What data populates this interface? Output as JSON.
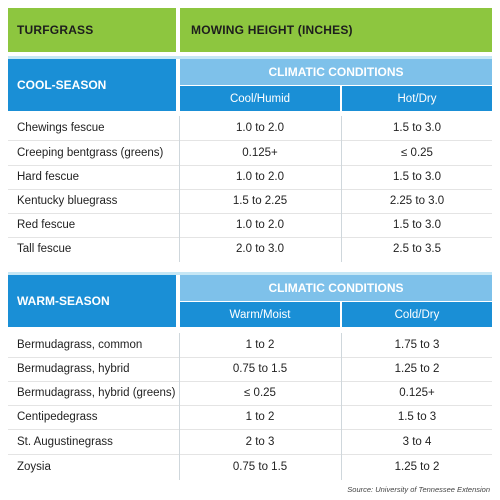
{
  "header": {
    "col1": "TURFGRASS",
    "col2": "MOWING HEIGHT (INCHES)"
  },
  "cool": {
    "label": "COOL-SEASON",
    "climatic": "CLIMATIC CONDITIONS",
    "cond1": "Cool/Humid",
    "cond2": "Hot/Dry",
    "rows": [
      {
        "name": "Chewings fescue",
        "v1": "1.0 to 2.0",
        "v2": "1.5 to 3.0"
      },
      {
        "name": "Creeping bentgrass (greens)",
        "v1": "0.125+",
        "v2": "≤ 0.25"
      },
      {
        "name": "Hard fescue",
        "v1": "1.0 to 2.0",
        "v2": "1.5 to 3.0"
      },
      {
        "name": "Kentucky bluegrass",
        "v1": "1.5 to 2.25",
        "v2": "2.25 to 3.0"
      },
      {
        "name": "Red fescue",
        "v1": "1.0 to 2.0",
        "v2": "1.5 to 3.0"
      },
      {
        "name": "Tall fescue",
        "v1": "2.0 to 3.0",
        "v2": "2.5 to 3.5"
      }
    ]
  },
  "warm": {
    "label": "WARM-SEASON",
    "climatic": "CLIMATIC CONDITIONS",
    "cond1": "Warm/Moist",
    "cond2": "Cold/Dry",
    "rows": [
      {
        "name": "Bermudagrass, common",
        "v1": "1 to 2",
        "v2": "1.75 to 3"
      },
      {
        "name": "Bermudagrass, hybrid",
        "v1": "0.75 to 1.5",
        "v2": "1.25 to 2"
      },
      {
        "name": "Bermudagrass, hybrid (greens)",
        "v1": "≤ 0.25",
        "v2": "0.125+"
      },
      {
        "name": "Centipedegrass",
        "v1": "1 to 2",
        "v2": "1.5 to 3"
      },
      {
        "name": "St. Augustinegrass",
        "v1": "2 to 3",
        "v2": "3 to 4"
      },
      {
        "name": "Zoysia",
        "v1": "0.75 to 1.5",
        "v2": "1.25 to 2"
      }
    ]
  },
  "source": "Source: University of Tennessee Extension",
  "colors": {
    "green": "#8dc63f",
    "blue": "#1a8fd6",
    "light_blue": "#7ec1ea",
    "pale_blue": "#c6e7f5"
  }
}
